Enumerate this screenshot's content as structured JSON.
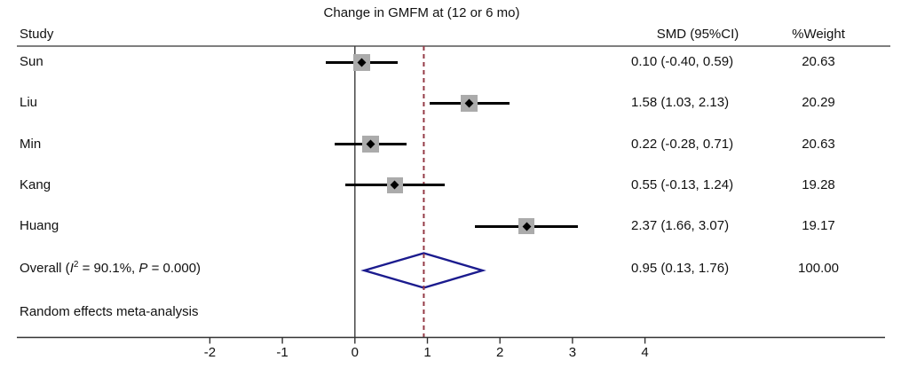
{
  "chart_data": {
    "type": "forest",
    "title": "Change in GMFM at (12 or 6 mo)",
    "columns": {
      "study": "Study",
      "smd": "SMD (95%CI)",
      "weight": "%Weight"
    },
    "x_ticks": [
      -2,
      -1,
      0,
      1,
      2,
      3,
      4
    ],
    "zero_line_value": 0,
    "studies": [
      {
        "label": "Sun",
        "smd": 0.1,
        "ci_low": -0.4,
        "ci_high": 0.59,
        "weight": 20.63,
        "smd_text": "0.10 (-0.40, 0.59)",
        "weight_text": "20.63"
      },
      {
        "label": "Liu",
        "smd": 1.58,
        "ci_low": 1.03,
        "ci_high": 2.13,
        "weight": 20.29,
        "smd_text": "1.58 (1.03, 2.13)",
        "weight_text": "20.29"
      },
      {
        "label": "Min",
        "smd": 0.22,
        "ci_low": -0.28,
        "ci_high": 0.71,
        "weight": 20.63,
        "smd_text": "0.22 (-0.28, 0.71)",
        "weight_text": "20.63"
      },
      {
        "label": "Kang",
        "smd": 0.55,
        "ci_low": -0.13,
        "ci_high": 1.24,
        "weight": 19.28,
        "smd_text": "0.55 (-0.13, 1.24)",
        "weight_text": "19.28"
      },
      {
        "label": "Huang",
        "smd": 2.37,
        "ci_low": 1.66,
        "ci_high": 3.07,
        "weight": 19.17,
        "smd_text": "2.37 (1.66, 3.07)",
        "weight_text": "19.17"
      }
    ],
    "overall": {
      "label_pre": "Overall (",
      "i2_italic": "I",
      "i2_sup": "2",
      "label_mid": " = 90.1%, ",
      "p_italic": "P",
      "label_post": " = 0.000)",
      "smd": 0.95,
      "ci_low": 0.13,
      "ci_high": 1.76,
      "smd_text": "0.95 (0.13, 1.76)",
      "weight_text": "100.00"
    },
    "heterogeneity": {
      "i_squared": "90.1%",
      "p_value": "0.000"
    },
    "model_note": "Random effects meta-analysis",
    "colors": {
      "diamond_outline": "#1b1b8e",
      "diamond_fill": "#ffffff",
      "dashed_line": "#953b47",
      "ci_line": "#000000",
      "marker_box": "#ababab",
      "marker_dot": "#000000",
      "axis": "#333333",
      "text": "#111111"
    }
  }
}
